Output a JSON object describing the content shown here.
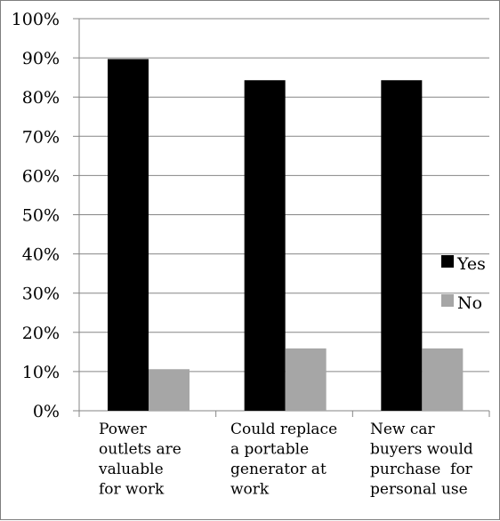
{
  "chart_data": {
    "type": "bar",
    "categories": [
      [
        "Power",
        "outlets are",
        "valuable",
        "for work"
      ],
      [
        "Could replace",
        "a portable",
        "generator at",
        "work"
      ],
      [
        "New car",
        "buyers would",
        "purchase  for",
        "personal use"
      ]
    ],
    "series": [
      {
        "name": "Yes",
        "values": [
          89.7,
          84.3,
          84.3
        ],
        "color": "#000000"
      },
      {
        "name": "No",
        "values": [
          10.6,
          15.9,
          15.9
        ],
        "color": "#a6a6a6"
      }
    ],
    "y_ticks": [
      "0%",
      "10%",
      "20%",
      "30%",
      "40%",
      "50%",
      "60%",
      "70%",
      "80%",
      "90%",
      "100%"
    ],
    "ylim": [
      0,
      100
    ],
    "grid": true,
    "legend_position": "right",
    "title": "",
    "xlabel": "",
    "ylabel": ""
  }
}
